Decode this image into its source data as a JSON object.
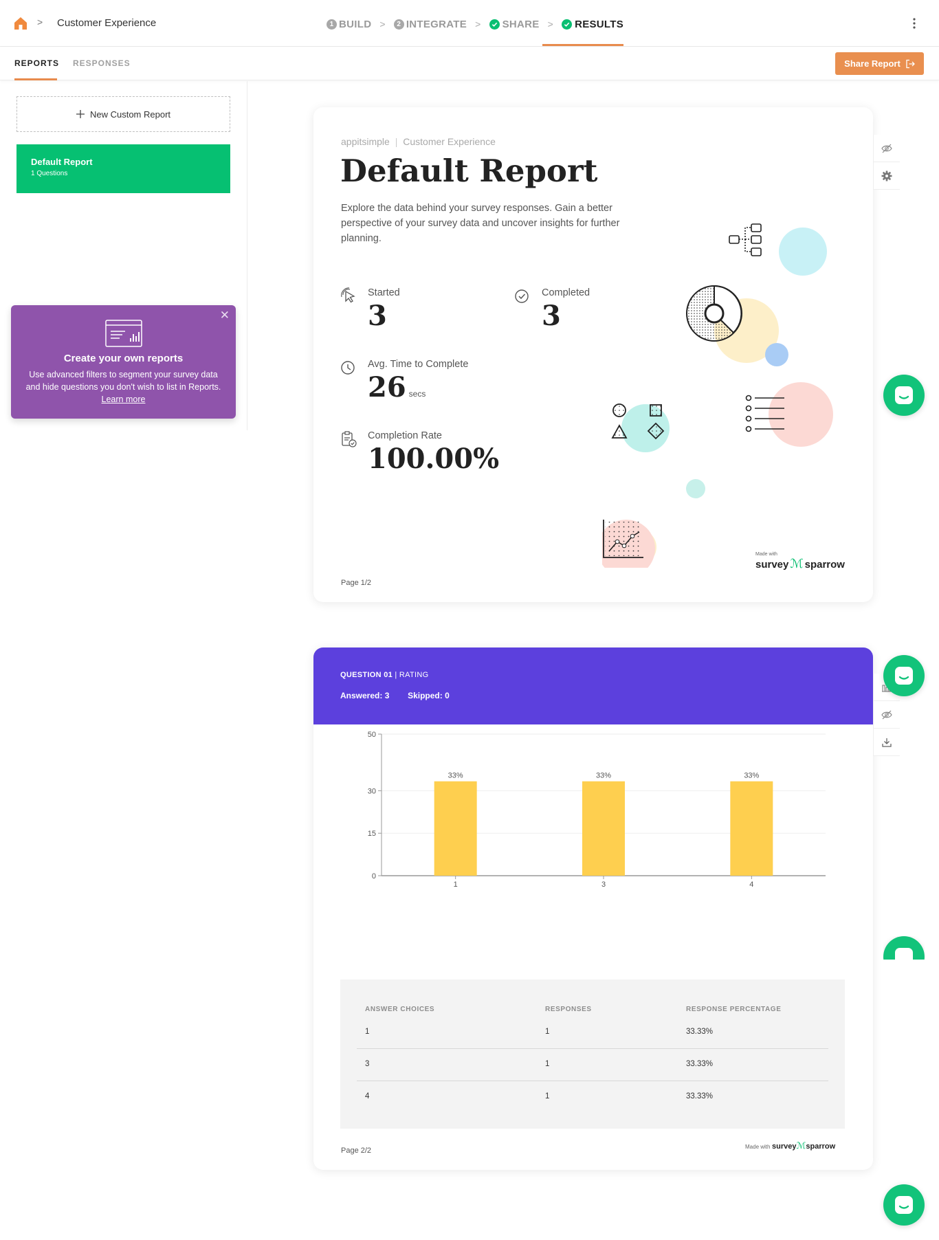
{
  "header": {
    "breadcrumb": "Customer Experience",
    "steps": [
      {
        "num": "1",
        "label": "BUILD",
        "state": "pending"
      },
      {
        "num": "2",
        "label": "INTEGRATE",
        "state": "pending"
      },
      {
        "num": "",
        "label": "SHARE",
        "state": "done"
      },
      {
        "num": "",
        "label": "RESULTS",
        "state": "active"
      }
    ]
  },
  "tabs": {
    "reports": "REPORTS",
    "responses": "RESPONSES",
    "share_button": "Share Report"
  },
  "sidebar": {
    "new_report": "New Custom Report",
    "report_title": "Default Report",
    "report_sub": "1 Questions",
    "promo_title": "Create your own reports",
    "promo_text": "Use advanced filters to segment your survey data and hide questions you don't wish to list in Reports.",
    "promo_link": "Learn more"
  },
  "page1": {
    "org": "appitsimple",
    "survey": "Customer Experience",
    "title": "Default Report",
    "description": "Explore the data behind your survey responses. Gain a better perspective of your survey data and uncover insights for further planning.",
    "metrics": {
      "started_label": "Started",
      "started_value": "3",
      "completed_label": "Completed",
      "completed_value": "3",
      "avg_label": "Avg. Time to Complete",
      "avg_value": "26",
      "avg_unit": "secs",
      "rate_label": "Completion Rate",
      "rate_value": "100.00%"
    },
    "page_no": "Page 1/2",
    "made_with": "Made with",
    "brand_a": "survey",
    "brand_b": "sparrow"
  },
  "page2": {
    "question_no": "QUESTION 01",
    "question_type": "RATING",
    "answered_label": "Answered:",
    "answered": "3",
    "skipped_label": "Skipped:",
    "skipped": "0",
    "table": {
      "headers": [
        "ANSWER CHOICES",
        "RESPONSES",
        "RESPONSE PERCENTAGE"
      ],
      "rows": [
        [
          "1",
          "1",
          "33.33%"
        ],
        [
          "3",
          "1",
          "33.33%"
        ],
        [
          "4",
          "1",
          "33.33%"
        ]
      ]
    },
    "page_no": "Page 2/2",
    "made_with": "Made with",
    "brand_a": "survey",
    "brand_b": "sparrow"
  },
  "chart_data": {
    "type": "bar",
    "categories": [
      "1",
      "3",
      "4"
    ],
    "values": [
      33.33,
      33.33,
      33.33
    ],
    "data_labels": [
      "33%",
      "33%",
      "33%"
    ],
    "yticks": [
      0,
      15,
      30,
      50
    ],
    "ylim": [
      0,
      50
    ],
    "bar_color": "#fecf4f",
    "title": "",
    "xlabel": "",
    "ylabel": ""
  },
  "colors": {
    "accent": "#e98f4f",
    "green": "#06c072",
    "purple": "#5c40dd",
    "promo": "#8f54ab"
  }
}
